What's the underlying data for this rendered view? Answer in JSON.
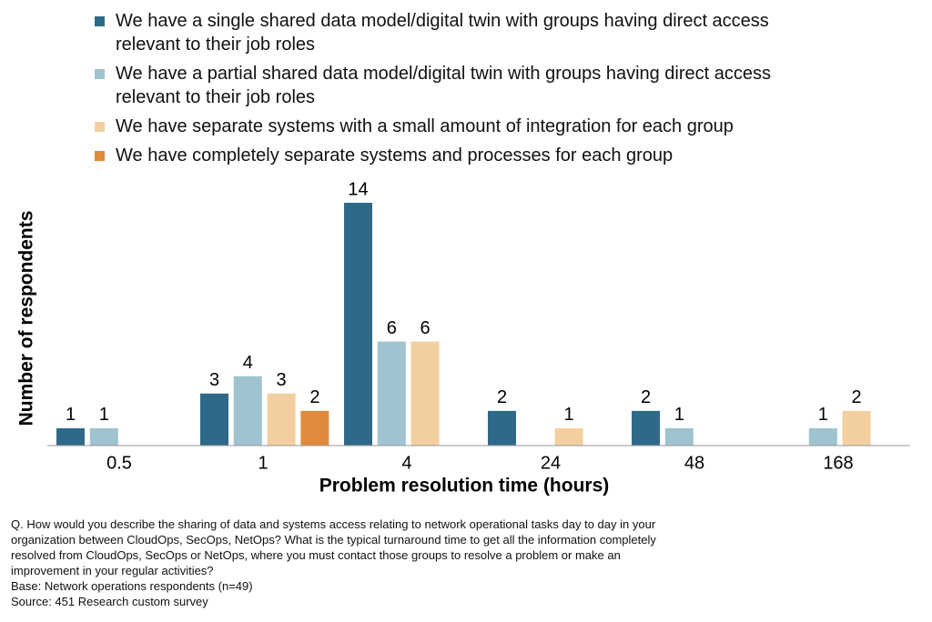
{
  "chart_data": {
    "type": "bar",
    "categories": [
      "0.5",
      "1",
      "4",
      "24",
      "48",
      "168"
    ],
    "series": [
      {
        "name": "We have a single shared data model/digital twin with groups having direct access relevant to their job roles",
        "color": "#2e6a88",
        "values": [
          1,
          3,
          14,
          2,
          2,
          null
        ]
      },
      {
        "name": "We have a partial shared data model/digital twin with groups having direct access relevant to their job roles",
        "color": "#9fc3cf",
        "values": [
          1,
          4,
          6,
          null,
          1,
          1
        ]
      },
      {
        "name": "We have separate systems with a small amount of integration for each group",
        "color": "#f3cfa0",
        "values": [
          null,
          3,
          6,
          1,
          null,
          2
        ]
      },
      {
        "name": "We have completely separate systems and processes for each group",
        "color": "#e08b3c",
        "values": [
          null,
          2,
          null,
          null,
          null,
          null
        ]
      }
    ],
    "ylim": [
      0,
      14
    ],
    "xlabel": "Problem resolution time (hours)",
    "ylabel": "Number of respondents",
    "notes": [
      "Q. How would you describe the sharing of data and systems access relating to network operational tasks day to day in your organization between CloudOps, SecOps, NetOps? What is the typical turnaround time to get all the information completely resolved from CloudOps, SecOps or NetOps, where you must contact those groups to resolve a problem or make an improvement in your regular activities?",
      "Base: Network operations respondents (n=49)",
      "Source: 451 Research custom survey"
    ]
  }
}
